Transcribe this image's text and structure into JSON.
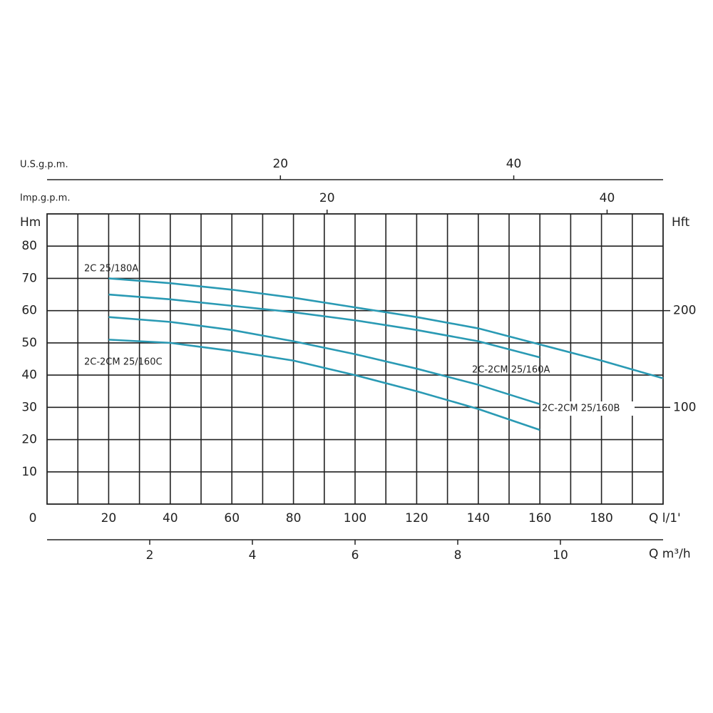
{
  "chart_data": {
    "type": "line",
    "x_label": "Q l/1'",
    "y_label": "Hm",
    "y2_label": "Hft",
    "xlim": [
      0,
      200
    ],
    "xticks": [
      0,
      20,
      40,
      60,
      80,
      100,
      120,
      140,
      160,
      180
    ],
    "xminorticks": [
      10,
      30,
      50,
      70,
      90,
      110,
      130,
      150,
      170,
      190
    ],
    "ylim": [
      0,
      90
    ],
    "yticks": [
      10,
      20,
      30,
      40,
      50,
      60,
      70,
      80
    ],
    "y2lim": [
      0,
      300
    ],
    "y2ticks": [
      100,
      200
    ],
    "grid": true,
    "top_axes": [
      {
        "label": "U.S.g.p.m.",
        "lim": [
          0,
          52.8
        ],
        "ticks": [
          20,
          40
        ]
      },
      {
        "label": "Imp.g.p.m.",
        "lim": [
          0,
          44
        ],
        "ticks": [
          20,
          40
        ]
      }
    ],
    "bottom_axis": {
      "label": "Q m³/h",
      "lim": [
        0,
        12
      ],
      "ticks": [
        2,
        4,
        6,
        8,
        10
      ]
    },
    "series": [
      {
        "name": "2C 25/180A",
        "color": "#2a9ab4",
        "x": [
          20,
          40,
          60,
          80,
          100,
          120,
          140,
          160,
          180,
          200
        ],
        "values": [
          70,
          68.5,
          66.5,
          64,
          61,
          58,
          54.5,
          49.5,
          44.5,
          39
        ]
      },
      {
        "name": "2C-2CM 25/160A",
        "color": "#2a9ab4",
        "x": [
          20,
          40,
          60,
          80,
          100,
          120,
          140,
          160
        ],
        "values": [
          65,
          63.5,
          61.5,
          59.5,
          57,
          54,
          50.5,
          45.5
        ]
      },
      {
        "name": "2C-2CM 25/160B",
        "color": "#2a9ab4",
        "x": [
          20,
          40,
          60,
          80,
          100,
          120,
          140,
          160
        ],
        "values": [
          58,
          56.5,
          54,
          50.5,
          46.5,
          42,
          37,
          31
        ]
      },
      {
        "name": "2C-2CM 25/160C",
        "color": "#2a9ab4",
        "x": [
          20,
          40,
          60,
          80,
          100,
          120,
          140,
          160
        ],
        "values": [
          51,
          50,
          47.5,
          44.5,
          40,
          35,
          29.5,
          23
        ]
      }
    ]
  }
}
